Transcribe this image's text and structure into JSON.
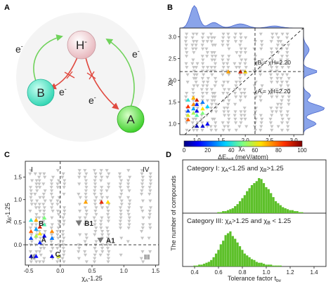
{
  "panels": {
    "a": "A",
    "b": "B",
    "c": "C",
    "d": "D"
  },
  "schematic": {
    "center": "H",
    "center_sup": "-",
    "left": "B",
    "right": "A",
    "electron": "e",
    "electron_sup": "-",
    "colors": {
      "center": "#f0c8cc",
      "left": "#4fe8c8",
      "right": "#5de04a",
      "allowed": "#6fd25a",
      "blocked": "#e04a40"
    }
  },
  "chart_data": [
    {
      "panel": "B",
      "type": "scatter",
      "xlabel": "χ",
      "xlabel_sub": "A",
      "ylabel": "χ",
      "ylabel_sub": "B",
      "xlim": [
        0.65,
        3.2
      ],
      "ylim": [
        0.75,
        3.2
      ],
      "xticks": [
        "1.0",
        "1.5",
        "2.0",
        "2.5",
        "3.0"
      ],
      "yticks": [
        "1.0",
        "1.5",
        "2.0",
        "2.5",
        "3.0"
      ],
      "lines": {
        "vertical_x": 2.2,
        "horizontal_y": 2.2,
        "diagonal": true
      },
      "annotations": [
        "χB = χH=2.20",
        "χA = χH=2.20"
      ],
      "marginal_density": {
        "top": true,
        "right": true,
        "color": "#5577dd"
      },
      "grey_columns_x": [
        0.79,
        0.93,
        1.0,
        1.12,
        1.22,
        1.31,
        1.38,
        1.55,
        1.65,
        1.8,
        1.9,
        2.0,
        2.2,
        2.33,
        2.54,
        2.66,
        2.75,
        2.88
      ],
      "colored_points": [
        {
          "x": 0.82,
          "y": 1.3,
          "v": 20
        },
        {
          "x": 0.82,
          "y": 1.4,
          "v": 85
        },
        {
          "x": 0.82,
          "y": 1.2,
          "v": 60
        },
        {
          "x": 0.93,
          "y": 1.35,
          "v": 30
        },
        {
          "x": 0.93,
          "y": 1.25,
          "v": 55
        },
        {
          "x": 0.93,
          "y": 1.45,
          "v": 75
        },
        {
          "x": 1.0,
          "y": 1.3,
          "v": 10
        },
        {
          "x": 1.0,
          "y": 1.55,
          "v": 90
        },
        {
          "x": 1.0,
          "y": 1.2,
          "v": 45
        },
        {
          "x": 1.12,
          "y": 1.35,
          "v": 65
        },
        {
          "x": 1.12,
          "y": 1.5,
          "v": 25
        },
        {
          "x": 0.82,
          "y": 1.55,
          "v": 40
        },
        {
          "x": 0.93,
          "y": 1.6,
          "v": 70
        },
        {
          "x": 1.0,
          "y": 1.45,
          "v": 15
        },
        {
          "x": 1.12,
          "y": 1.25,
          "v": 50
        },
        {
          "x": 1.22,
          "y": 1.4,
          "v": 35
        },
        {
          "x": 0.82,
          "y": 1.1,
          "v": 80
        },
        {
          "x": 1.0,
          "y": 0.95,
          "v": 5
        },
        {
          "x": 1.12,
          "y": 0.95,
          "v": 8
        },
        {
          "x": 1.22,
          "y": 1.0,
          "v": 12
        },
        {
          "x": 1.65,
          "y": 2.2,
          "v": 72
        },
        {
          "x": 1.9,
          "y": 2.2,
          "v": 88
        },
        {
          "x": 2.0,
          "y": 2.2,
          "v": 66
        }
      ]
    },
    {
      "panel": "colorbar",
      "type": "heatmap",
      "label": "ΔE",
      "label_sub": "hull",
      "label_unit": " (meV/atom)",
      "ticks": [
        "0",
        "20",
        "40",
        "60",
        "80",
        "100"
      ],
      "range": [
        0,
        100
      ]
    },
    {
      "panel": "C",
      "type": "scatter",
      "xlabel": "χ",
      "xlabel_sub": "A",
      "xlabel_suffix": "-1.25",
      "ylabel": "χ",
      "ylabel_sub": "B",
      "ylabel_suffix": "-1.25",
      "xlim": [
        -0.55,
        1.55
      ],
      "ylim": [
        -0.45,
        1.85
      ],
      "xticks": [
        "-0.5",
        "0.0",
        "0.5",
        "1.0",
        "1.5"
      ],
      "yticks": [
        "0.0",
        "0.5",
        "1.0",
        "1.5"
      ],
      "regions": [
        "I",
        "II",
        "III",
        "IV"
      ],
      "labeled_points": [
        {
          "label": "A",
          "x": -0.3,
          "y": 0.12
        },
        {
          "label": "B",
          "x": -0.34,
          "y": 0.48
        },
        {
          "label": "C",
          "x": -0.08,
          "y": -0.2
        },
        {
          "label": "A1",
          "x": 0.72,
          "y": 0.1
        },
        {
          "label": "B1",
          "x": 0.38,
          "y": 0.48
        }
      ],
      "grey_columns_x": [
        -0.46,
        -0.38,
        -0.32,
        -0.25,
        -0.13,
        -0.03,
        0.05,
        0.3,
        0.4,
        0.55,
        0.65,
        0.75,
        0.95,
        1.08,
        1.29,
        1.41
      ],
      "colored_points": [
        {
          "x": -0.46,
          "y": 0.15,
          "v": 20
        },
        {
          "x": -0.46,
          "y": 0.3,
          "v": 80
        },
        {
          "x": -0.38,
          "y": 0.2,
          "v": 55
        },
        {
          "x": -0.38,
          "y": 0.35,
          "v": 30
        },
        {
          "x": -0.32,
          "y": 0.25,
          "v": 65
        },
        {
          "x": -0.32,
          "y": 0.4,
          "v": 90
        },
        {
          "x": -0.25,
          "y": 0.2,
          "v": 10
        },
        {
          "x": -0.25,
          "y": 0.45,
          "v": 45
        },
        {
          "x": -0.13,
          "y": 0.3,
          "v": 75
        },
        {
          "x": -0.13,
          "y": 0.15,
          "v": 25
        },
        {
          "x": -0.46,
          "y": 0.55,
          "v": 40
        },
        {
          "x": -0.38,
          "y": 0.55,
          "v": 70
        },
        {
          "x": -0.32,
          "y": 0.05,
          "v": 15
        },
        {
          "x": -0.25,
          "y": 0.6,
          "v": 50
        },
        {
          "x": -0.46,
          "y": -0.25,
          "v": 5
        },
        {
          "x": -0.38,
          "y": -0.25,
          "v": 12
        },
        {
          "x": -0.13,
          "y": -0.25,
          "v": 8
        },
        {
          "x": -0.03,
          "y": -0.25,
          "v": 60
        },
        {
          "x": 0.4,
          "y": 0.95,
          "v": 72
        },
        {
          "x": 0.65,
          "y": 0.95,
          "v": 88
        },
        {
          "x": 0.75,
          "y": 0.95,
          "v": 66
        }
      ]
    },
    {
      "panel": "D",
      "type": "bar",
      "ylabel": "The number of compounds",
      "xlabel": "Tolerance factor t",
      "xlabel_sub": "bv",
      "xlim": [
        0.3,
        1.5
      ],
      "xticks": [
        "0.4",
        "0.6",
        "0.8",
        "1.0",
        "1.2",
        "1.4"
      ],
      "series": [
        {
          "name_parts": [
            "Category I: χ",
            "A",
            "<1.25 and χ",
            "B",
            ">1.25"
          ],
          "color": "#5dc02a",
          "x": [
            0.6,
            0.62,
            0.64,
            0.66,
            0.68,
            0.7,
            0.72,
            0.74,
            0.76,
            0.78,
            0.8,
            0.82,
            0.84,
            0.86,
            0.88,
            0.9,
            0.92,
            0.94,
            0.96,
            0.98,
            1.0,
            1.02,
            1.04,
            1.06,
            1.08,
            1.1,
            1.12,
            1.14,
            1.16,
            1.18,
            1.2,
            1.22,
            1.24,
            1.26,
            1.28,
            1.3
          ],
          "values": [
            1,
            1,
            2,
            2,
            3,
            4,
            5,
            7,
            9,
            12,
            15,
            18,
            22,
            25,
            28,
            30,
            32,
            35,
            34,
            30,
            26,
            24,
            20,
            16,
            12,
            10,
            8,
            6,
            5,
            4,
            3,
            3,
            2,
            2,
            1,
            1
          ]
        },
        {
          "name_parts": [
            "Category III: χ",
            "A",
            ">1.25 and χ",
            "B",
            " < 1.25"
          ],
          "color": "#5dc02a",
          "x": [
            0.4,
            0.42,
            0.44,
            0.46,
            0.48,
            0.5,
            0.52,
            0.54,
            0.56,
            0.58,
            0.6,
            0.62,
            0.64,
            0.66,
            0.68,
            0.7,
            0.72,
            0.74,
            0.76,
            0.78,
            0.8,
            0.82,
            0.84,
            0.86,
            0.88,
            0.9,
            0.92,
            0.94,
            0.96,
            0.98,
            1.0,
            1.02,
            1.04,
            1.06,
            1.08,
            1.1,
            1.12
          ],
          "values": [
            1,
            1,
            2,
            2,
            3,
            4,
            5,
            7,
            10,
            14,
            18,
            24,
            28,
            34,
            36,
            38,
            33,
            30,
            26,
            22,
            18,
            14,
            12,
            10,
            8,
            7,
            5,
            4,
            4,
            3,
            2,
            2,
            2,
            1,
            1,
            1,
            1
          ]
        }
      ]
    }
  ]
}
